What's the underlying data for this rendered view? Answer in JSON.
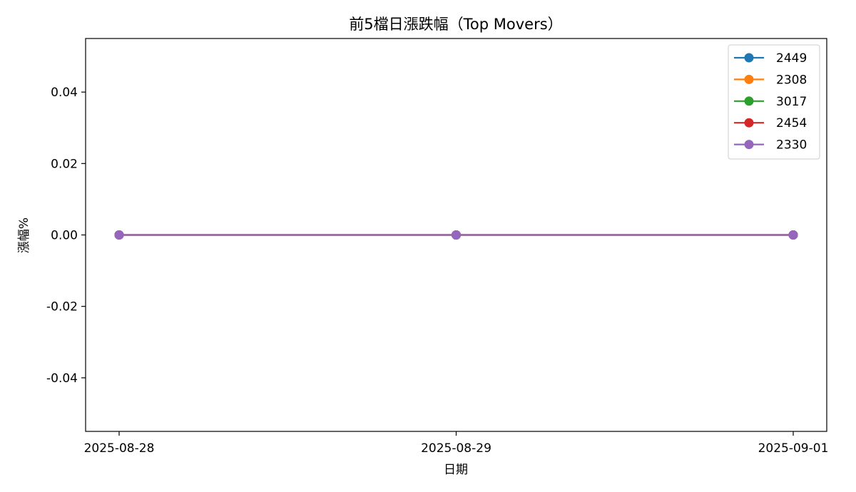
{
  "chart_data": {
    "type": "line",
    "title": "前5檔日漲跌幅（Top Movers）",
    "xlabel": "日期",
    "ylabel": "漲幅%",
    "categories": [
      "2025-08-28",
      "2025-08-29",
      "2025-09-01"
    ],
    "ylim": [
      -0.055,
      0.055
    ],
    "yticks": [
      -0.04,
      -0.02,
      0.0,
      0.02,
      0.04
    ],
    "ytick_labels": [
      "-0.04",
      "-0.02",
      "0.00",
      "0.02",
      "0.04"
    ],
    "grid": false,
    "legend_position": "top-right",
    "series": [
      {
        "name": "2449",
        "color": "#1f77b4",
        "values": [
          0,
          0,
          0
        ]
      },
      {
        "name": "2308",
        "color": "#ff7f0e",
        "values": [
          0,
          0,
          0
        ]
      },
      {
        "name": "3017",
        "color": "#2ca02c",
        "values": [
          0,
          0,
          0
        ]
      },
      {
        "name": "2454",
        "color": "#d62728",
        "values": [
          0,
          0,
          0
        ]
      },
      {
        "name": "2330",
        "color": "#9467bd",
        "values": [
          0,
          0,
          0
        ]
      }
    ]
  }
}
